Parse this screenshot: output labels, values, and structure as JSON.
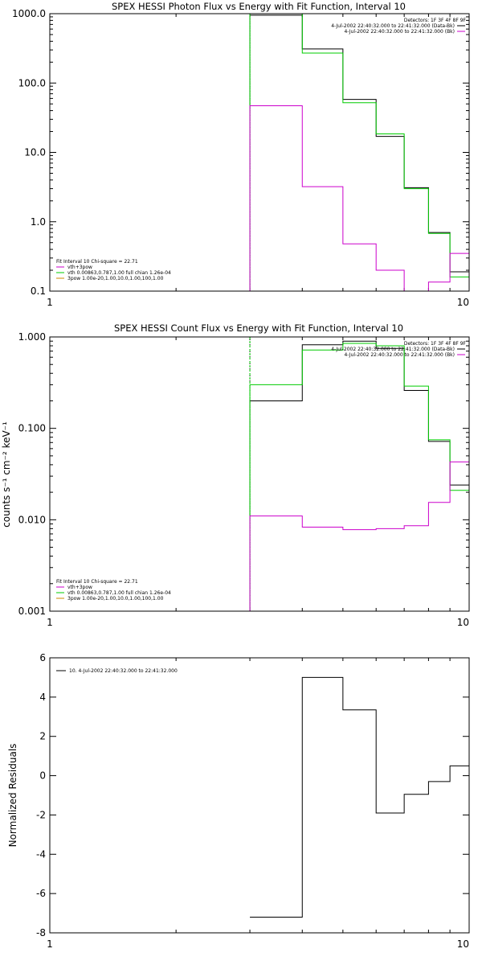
{
  "chart_data": [
    {
      "type": "line",
      "title": "SPEX HESSI Photon Flux vs Energy with Fit Function, Interval 10",
      "xlabel": "",
      "ylabel": "",
      "xscale": "log",
      "yscale": "log",
      "xlim": [
        1,
        10
      ],
      "ylim": [
        0.1,
        1000
      ],
      "x_ticks": [
        {
          "value": 1,
          "label": "1"
        },
        {
          "value": 10,
          "label": "10"
        }
      ],
      "y_ticks": [
        {
          "value": 0.1,
          "label": "0.1"
        },
        {
          "value": 1,
          "label": "1.0"
        },
        {
          "value": 10,
          "label": "10.0"
        },
        {
          "value": 100,
          "label": "100.0"
        },
        {
          "value": 1000,
          "label": "1000.0"
        }
      ],
      "bin_edges": [
        3,
        4,
        5,
        6,
        7,
        8,
        9,
        10
      ],
      "vline": {
        "x": 3,
        "color": "#00cc00"
      },
      "series": [
        {
          "color": "#000000",
          "values": [
            950,
            310,
            58,
            17,
            3.1,
            0.7,
            0.19
          ]
        },
        {
          "color": "#00cc00",
          "values": [
            1000,
            270,
            52,
            18.5,
            3.0,
            0.68,
            0.16
          ]
        },
        {
          "color": "#cc00cc",
          "values": [
            47,
            3.2,
            0.48,
            0.2,
            0.095,
            0.135,
            0.35
          ]
        }
      ],
      "top_legend": {
        "header": "Detectors: 1F 3F 4F 8F 9F",
        "entries": [
          {
            "text": "4-Jul-2002 22:40:32.000 to 22:41:32.000 (Data-Bk)",
            "color": "#000000"
          },
          {
            "text": "4-Jul-2002 22:40:32.000 to 22:41:32.000 (Bk)",
            "color": "#cc00cc"
          }
        ]
      },
      "bottom_legend": {
        "header": "Fit Interval 10   Chi-square = 22.71",
        "entries": [
          {
            "text": "vth+3pow",
            "color": "#cc00cc"
          },
          {
            "text": "vth 0.00863,0.787,1.00  full chian 1.26e-04",
            "color": "#00cc00"
          },
          {
            "text": "3pow 1.00e-20,1.00,10.0,1.00,100,1.00",
            "color": "#cc8800"
          }
        ]
      }
    },
    {
      "type": "line",
      "title": "SPEX HESSI Count Flux vs Energy with Fit Function, Interval 10",
      "xlabel": "",
      "ylabel": "counts s⁻¹ cm⁻² keV⁻¹",
      "xscale": "log",
      "yscale": "log",
      "xlim": [
        1,
        10
      ],
      "ylim": [
        0.001,
        1
      ],
      "x_ticks": [
        {
          "value": 1,
          "label": "1"
        },
        {
          "value": 10,
          "label": "10"
        }
      ],
      "y_ticks": [
        {
          "value": 0.001,
          "label": "0.001"
        },
        {
          "value": 0.01,
          "label": "0.010"
        },
        {
          "value": 0.1,
          "label": "0.100"
        },
        {
          "value": 1,
          "label": "1.000"
        }
      ],
      "bin_edges": [
        3,
        4,
        5,
        6,
        7,
        8,
        9,
        10
      ],
      "vline": {
        "x": 3,
        "color": "#00cc00"
      },
      "series": [
        {
          "color": "#000000",
          "values": [
            0.2,
            0.82,
            0.9,
            0.75,
            0.26,
            0.072,
            0.024
          ]
        },
        {
          "color": "#00cc00",
          "values": [
            0.3,
            0.72,
            0.85,
            0.8,
            0.29,
            0.075,
            0.021
          ]
        },
        {
          "color": "#cc00cc",
          "values": [
            0.011,
            0.0083,
            0.0078,
            0.008,
            0.0086,
            0.0155,
            0.043
          ]
        }
      ],
      "top_legend": {
        "header": "Detectors: 1F 3F 4F 8F 9F",
        "entries": [
          {
            "text": "4-Jul-2002 22:40:32.000 to 22:41:32.000 (Data-Bk)",
            "color": "#000000"
          },
          {
            "text": "4-Jul-2002 22:40:32.000 to 22:41:32.000 (Bk)",
            "color": "#cc00cc"
          }
        ]
      },
      "bottom_legend": {
        "header": "Fit Interval 10   Chi-square = 22.71",
        "entries": [
          {
            "text": "vth+3pow",
            "color": "#cc00cc"
          },
          {
            "text": "vth 0.00863,0.787,1.00  full chian 1.26e-04",
            "color": "#00cc00"
          },
          {
            "text": "3pow 1.00e-20,1.00,10.0,1.00,100,1.00",
            "color": "#cc8800"
          }
        ]
      }
    },
    {
      "type": "line",
      "title": "",
      "xlabel": "",
      "ylabel": "Normalized Residuals",
      "xscale": "log",
      "yscale": "linear",
      "xlim": [
        1,
        10
      ],
      "ylim": [
        -8,
        6
      ],
      "x_ticks": [
        {
          "value": 1,
          "label": "1"
        },
        {
          "value": 10,
          "label": "10"
        }
      ],
      "y_ticks": [
        {
          "value": -8,
          "label": "-8"
        },
        {
          "value": -6,
          "label": "-6"
        },
        {
          "value": -4,
          "label": "-4"
        },
        {
          "value": -2,
          "label": "-2"
        },
        {
          "value": 0,
          "label": "0"
        },
        {
          "value": 2,
          "label": "2"
        },
        {
          "value": 4,
          "label": "4"
        },
        {
          "value": 6,
          "label": "6"
        }
      ],
      "bin_edges": [
        3,
        4,
        5,
        6,
        7,
        8,
        9,
        10
      ],
      "series": [
        {
          "color": "#000000",
          "values": [
            -7.2,
            5.0,
            3.35,
            -1.9,
            -0.95,
            -0.3,
            0.5
          ]
        }
      ],
      "top_legend": {
        "header": "",
        "entries": [
          {
            "text": "10.  4-Jul-2002 22:40:32.000 to 22:41:32.000",
            "color": "#000000"
          }
        ]
      }
    }
  ]
}
